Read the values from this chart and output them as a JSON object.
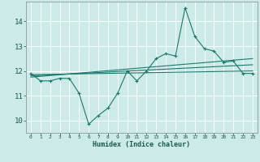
{
  "xlabel": "Humidex (Indice chaleur)",
  "bg_color": "#cceae7",
  "grid_color": "#ffffff",
  "line_color": "#1a7a6e",
  "xlim": [
    -0.5,
    23.5
  ],
  "ylim": [
    9.5,
    14.8
  ],
  "xticks": [
    0,
    1,
    2,
    3,
    4,
    5,
    6,
    7,
    8,
    9,
    10,
    11,
    12,
    13,
    14,
    15,
    16,
    17,
    18,
    19,
    20,
    21,
    22,
    23
  ],
  "yticks": [
    10,
    11,
    12,
    13,
    14
  ],
  "line1_x": [
    0,
    1,
    2,
    3,
    4,
    5,
    6,
    7,
    8,
    9,
    10,
    11,
    12,
    13,
    14,
    15,
    16,
    17,
    18,
    19,
    20,
    21,
    22,
    23
  ],
  "line1_y": [
    11.9,
    11.6,
    11.6,
    11.7,
    11.7,
    11.1,
    9.85,
    10.2,
    10.5,
    11.1,
    12.0,
    11.6,
    12.0,
    12.5,
    12.7,
    12.6,
    14.55,
    13.4,
    12.9,
    12.8,
    12.35,
    12.4,
    11.9,
    11.9
  ],
  "line2_x": [
    0,
    23
  ],
  "line2_y": [
    11.85,
    12.0
  ],
  "line3_x": [
    0,
    23
  ],
  "line3_y": [
    11.8,
    12.25
  ],
  "line4_x": [
    0,
    23
  ],
  "line4_y": [
    11.75,
    12.5
  ]
}
